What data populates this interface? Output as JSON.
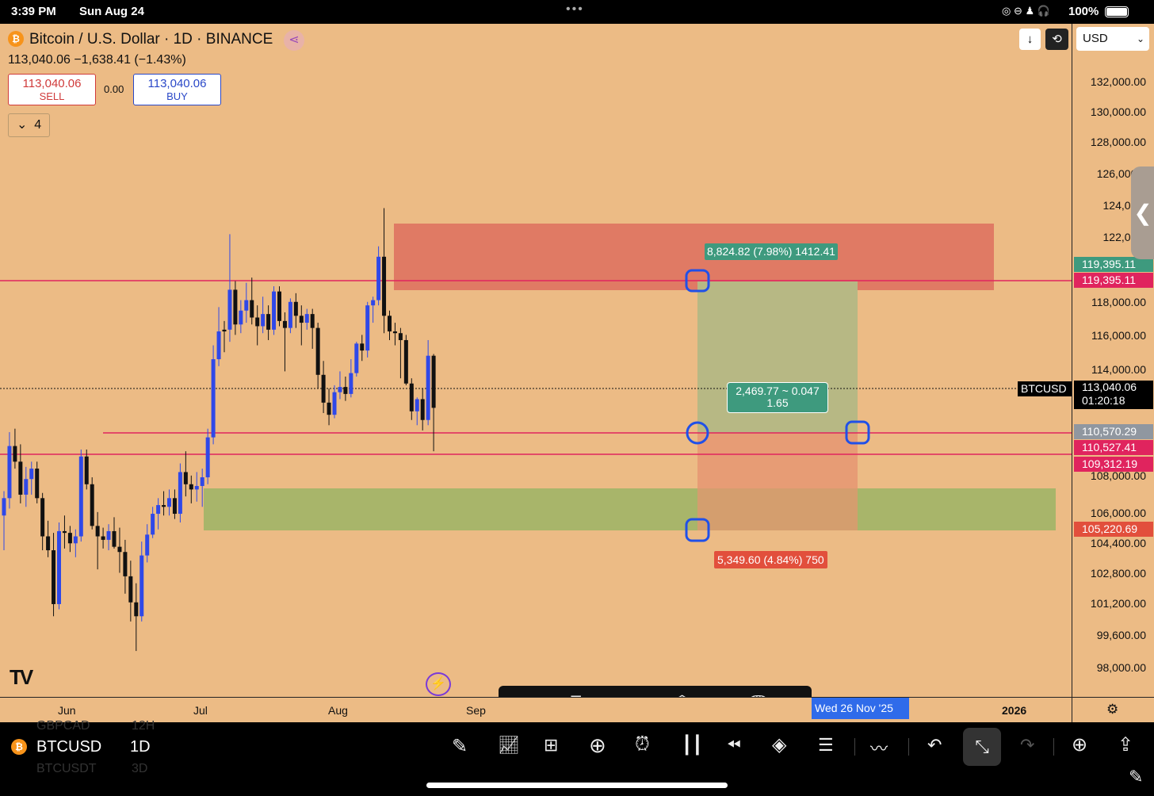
{
  "status": {
    "time": "3:39 PM",
    "date": "Sun Aug 24",
    "battery": "100%"
  },
  "header": {
    "title": "Bitcoin / U.S. Dollar · 1D · BINANCE",
    "price_line": "113,040.06 −1,638.41 (−1.43%)",
    "sell_price": "113,040.06",
    "sell_label": "SELL",
    "spread": "0.00",
    "buy_price": "113,040.06",
    "buy_label": "BUY",
    "indicators_count": "4",
    "currency": "USD"
  },
  "price_ticks": [
    "132,000.00",
    "130,000.00",
    "128,000.00",
    "126,000.0",
    "124,000.",
    "122,000.",
    "118,000.00",
    "116,000.00",
    "114,000.00",
    "108,000.00",
    "106,000.00",
    "104,400.00",
    "102,800.00",
    "101,200.00",
    "99,600.00",
    "98,000.00"
  ],
  "price_labels": {
    "target_green": "119,395.11",
    "target_red": "119,395.11",
    "symbol": "BTCUSD",
    "current": "113,040.06",
    "countdown": "01:20:18",
    "entry": "110,570.29",
    "line1": "110,527.41",
    "line2": "109,312.19",
    "stop": "105,220.69"
  },
  "position_tool": {
    "target_label": "8,824.82 (7.98%) 1412.41",
    "ratio_label_1": "2,469.77 ~ 0.047",
    "ratio_label_2": "1.65",
    "stop_label": "5,349.60 (4.84%) 750"
  },
  "time_axis": {
    "labels": [
      "Jun",
      "Jul",
      "Aug",
      "Sep",
      "2026"
    ],
    "crosshair_date": "Wed 26 Nov '25"
  },
  "bottom": {
    "symbol": "BTCUSD",
    "interval": "1D",
    "ghost1": "GBPCAD",
    "ghost1b": "12H",
    "ghost2": "BTCUSDT",
    "ghost2b": "3D"
  },
  "colors": {
    "background": "#ecbb85",
    "bull": "#2f48e8",
    "bear": "#111111",
    "red_line": "#e0245e",
    "target_zone": "#e07a64",
    "stop_zone": "#a8b56a",
    "profit_box": "#b7b884",
    "loss_box": "#e79a74"
  },
  "candles": [
    {
      "o": 106800,
      "h": 108200,
      "l": 104800,
      "c": 107800,
      "up": 1
    },
    {
      "o": 107800,
      "h": 111600,
      "l": 107200,
      "c": 110800,
      "up": 1
    },
    {
      "o": 110800,
      "h": 111800,
      "l": 109500,
      "c": 109900,
      "up": 0
    },
    {
      "o": 109900,
      "h": 110900,
      "l": 107500,
      "c": 108000,
      "up": 0
    },
    {
      "o": 108000,
      "h": 109600,
      "l": 107300,
      "c": 108900,
      "up": 1
    },
    {
      "o": 108900,
      "h": 109900,
      "l": 108000,
      "c": 109500,
      "up": 1
    },
    {
      "o": 109500,
      "h": 109900,
      "l": 107500,
      "c": 107800,
      "up": 0
    },
    {
      "o": 107800,
      "h": 108100,
      "l": 104800,
      "c": 105600,
      "up": 0
    },
    {
      "o": 105600,
      "h": 106500,
      "l": 104400,
      "c": 104800,
      "up": 0
    },
    {
      "o": 104800,
      "h": 105800,
      "l": 101000,
      "c": 101700,
      "up": 0
    },
    {
      "o": 101700,
      "h": 106400,
      "l": 101400,
      "c": 105900,
      "up": 1
    },
    {
      "o": 105900,
      "h": 106800,
      "l": 104900,
      "c": 105800,
      "up": 0
    },
    {
      "o": 105800,
      "h": 106200,
      "l": 104700,
      "c": 105200,
      "up": 0
    },
    {
      "o": 105200,
      "h": 106000,
      "l": 104400,
      "c": 105600,
      "up": 1
    },
    {
      "o": 105600,
      "h": 110600,
      "l": 105300,
      "c": 110200,
      "up": 1
    },
    {
      "o": 110200,
      "h": 110600,
      "l": 108300,
      "c": 108600,
      "up": 0
    },
    {
      "o": 108600,
      "h": 109000,
      "l": 106000,
      "c": 106200,
      "up": 0
    },
    {
      "o": 106200,
      "h": 107000,
      "l": 103700,
      "c": 105600,
      "up": 0
    },
    {
      "o": 105600,
      "h": 106100,
      "l": 104900,
      "c": 105400,
      "up": 0
    },
    {
      "o": 105400,
      "h": 106300,
      "l": 104800,
      "c": 105900,
      "up": 1
    },
    {
      "o": 105900,
      "h": 106700,
      "l": 104900,
      "c": 105000,
      "up": 0
    },
    {
      "o": 105000,
      "h": 106100,
      "l": 103500,
      "c": 104700,
      "up": 0
    },
    {
      "o": 104700,
      "h": 105400,
      "l": 102300,
      "c": 103300,
      "up": 0
    },
    {
      "o": 103300,
      "h": 104200,
      "l": 100700,
      "c": 101800,
      "up": 0
    },
    {
      "o": 101800,
      "h": 102900,
      "l": 99000,
      "c": 101000,
      "up": 0
    },
    {
      "o": 101000,
      "h": 105300,
      "l": 100700,
      "c": 104500,
      "up": 1
    },
    {
      "o": 104500,
      "h": 106300,
      "l": 104100,
      "c": 105700,
      "up": 1
    },
    {
      "o": 105700,
      "h": 107300,
      "l": 105500,
      "c": 106900,
      "up": 1
    },
    {
      "o": 106900,
      "h": 107800,
      "l": 106000,
      "c": 107400,
      "up": 1
    },
    {
      "o": 107400,
      "h": 108200,
      "l": 106800,
      "c": 107300,
      "up": 0
    },
    {
      "o": 107300,
      "h": 108300,
      "l": 106800,
      "c": 107800,
      "up": 1
    },
    {
      "o": 107800,
      "h": 108300,
      "l": 106600,
      "c": 106900,
      "up": 0
    },
    {
      "o": 106900,
      "h": 109800,
      "l": 106400,
      "c": 109300,
      "up": 1
    },
    {
      "o": 109300,
      "h": 110500,
      "l": 107900,
      "c": 108600,
      "up": 0
    },
    {
      "o": 108600,
      "h": 109100,
      "l": 107500,
      "c": 108300,
      "up": 0
    },
    {
      "o": 108300,
      "h": 109300,
      "l": 107600,
      "c": 108500,
      "up": 1
    },
    {
      "o": 108500,
      "h": 109500,
      "l": 107300,
      "c": 109000,
      "up": 1
    },
    {
      "o": 109000,
      "h": 111800,
      "l": 108600,
      "c": 111300,
      "up": 1
    },
    {
      "o": 111300,
      "h": 116600,
      "l": 110900,
      "c": 115800,
      "up": 1
    },
    {
      "o": 115800,
      "h": 118800,
      "l": 115400,
      "c": 117400,
      "up": 1
    },
    {
      "o": 117400,
      "h": 118000,
      "l": 116200,
      "c": 117500,
      "up": 0
    },
    {
      "o": 117500,
      "h": 123000,
      "l": 116800,
      "c": 119800,
      "up": 1
    },
    {
      "o": 119800,
      "h": 120300,
      "l": 117200,
      "c": 117800,
      "up": 0
    },
    {
      "o": 117800,
      "h": 119200,
      "l": 117300,
      "c": 118600,
      "up": 1
    },
    {
      "o": 118600,
      "h": 120200,
      "l": 117900,
      "c": 119200,
      "up": 1
    },
    {
      "o": 119200,
      "h": 120500,
      "l": 117800,
      "c": 118200,
      "up": 0
    },
    {
      "o": 118200,
      "h": 118900,
      "l": 116600,
      "c": 117700,
      "up": 0
    },
    {
      "o": 117700,
      "h": 119400,
      "l": 117300,
      "c": 118400,
      "up": 1
    },
    {
      "o": 118400,
      "h": 118900,
      "l": 116900,
      "c": 117500,
      "up": 0
    },
    {
      "o": 117500,
      "h": 120000,
      "l": 117200,
      "c": 119700,
      "up": 1
    },
    {
      "o": 119700,
      "h": 120000,
      "l": 117700,
      "c": 118000,
      "up": 0
    },
    {
      "o": 118000,
      "h": 118500,
      "l": 115100,
      "c": 117600,
      "up": 0
    },
    {
      "o": 117600,
      "h": 119300,
      "l": 117300,
      "c": 119100,
      "up": 1
    },
    {
      "o": 119100,
      "h": 119600,
      "l": 117600,
      "c": 118300,
      "up": 0
    },
    {
      "o": 118300,
      "h": 118900,
      "l": 116600,
      "c": 117900,
      "up": 0
    },
    {
      "o": 117900,
      "h": 118700,
      "l": 117500,
      "c": 118400,
      "up": 1
    },
    {
      "o": 118400,
      "h": 118700,
      "l": 116400,
      "c": 117600,
      "up": 0
    },
    {
      "o": 117600,
      "h": 117900,
      "l": 114100,
      "c": 114900,
      "up": 0
    },
    {
      "o": 114900,
      "h": 115700,
      "l": 112700,
      "c": 113300,
      "up": 0
    },
    {
      "o": 113300,
      "h": 114100,
      "l": 112000,
      "c": 112600,
      "up": 0
    },
    {
      "o": 112600,
      "h": 114300,
      "l": 112400,
      "c": 113900,
      "up": 1
    },
    {
      "o": 113900,
      "h": 115100,
      "l": 113500,
      "c": 114200,
      "up": 1
    },
    {
      "o": 114200,
      "h": 114800,
      "l": 113400,
      "c": 113800,
      "up": 0
    },
    {
      "o": 113800,
      "h": 115800,
      "l": 113600,
      "c": 115000,
      "up": 1
    },
    {
      "o": 115000,
      "h": 116800,
      "l": 114800,
      "c": 116700,
      "up": 1
    },
    {
      "o": 116700,
      "h": 117200,
      "l": 115700,
      "c": 116300,
      "up": 0
    },
    {
      "o": 116300,
      "h": 119100,
      "l": 115900,
      "c": 118900,
      "up": 1
    },
    {
      "o": 118900,
      "h": 119400,
      "l": 117900,
      "c": 119200,
      "up": 1
    },
    {
      "o": 119200,
      "h": 122300,
      "l": 118900,
      "c": 121700,
      "up": 1
    },
    {
      "o": 121700,
      "h": 124500,
      "l": 117300,
      "c": 118300,
      "up": 0
    },
    {
      "o": 118300,
      "h": 118600,
      "l": 116900,
      "c": 117400,
      "up": 0
    },
    {
      "o": 117400,
      "h": 117900,
      "l": 116600,
      "c": 117300,
      "up": 0
    },
    {
      "o": 117300,
      "h": 117600,
      "l": 114700,
      "c": 116900,
      "up": 0
    },
    {
      "o": 116900,
      "h": 117200,
      "l": 114300,
      "c": 114400,
      "up": 0
    },
    {
      "o": 114400,
      "h": 114700,
      "l": 112300,
      "c": 112800,
      "up": 0
    },
    {
      "o": 112800,
      "h": 113600,
      "l": 112000,
      "c": 113500,
      "up": 1
    },
    {
      "o": 113500,
      "h": 114100,
      "l": 111700,
      "c": 112300,
      "up": 0
    },
    {
      "o": 112300,
      "h": 116900,
      "l": 112000,
      "c": 116000,
      "up": 1
    },
    {
      "o": 116000,
      "h": 116100,
      "l": 110500,
      "c": 113000,
      "up": 0
    }
  ]
}
